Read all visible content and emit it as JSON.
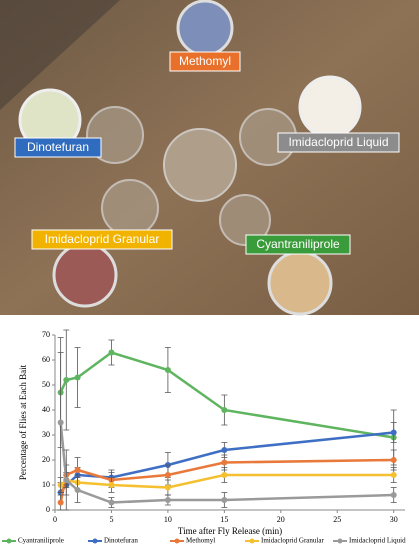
{
  "photo": {
    "labels": [
      {
        "text": "Methomyl",
        "color": "#e8702a"
      },
      {
        "text": "Dinotefuran",
        "color": "#2f6bbf"
      },
      {
        "text": "Imidacloprid Liquid",
        "color": "#8c8c8c"
      },
      {
        "text": "Imidacloprid Granular",
        "color": "#f2b300"
      },
      {
        "text": "Cyantraniliprole",
        "color": "#3a9b3a"
      }
    ]
  },
  "chart_data": {
    "type": "line",
    "x_label": "Time after Fly Release (min)",
    "y_label": "Percentage of Flies at Each Bait",
    "x": [
      0.5,
      1,
      2,
      5,
      10,
      15,
      30
    ],
    "xlim": [
      0,
      31
    ],
    "xticks": [
      0,
      5,
      10,
      15,
      20,
      25,
      30
    ],
    "ylim": [
      0,
      70
    ],
    "yticks": [
      0,
      10,
      20,
      30,
      40,
      50,
      60,
      70
    ],
    "series": [
      {
        "name": "Cyantraniliprole",
        "color": "#5fb55f",
        "values": [
          47,
          52,
          53,
          63,
          56,
          40,
          29
        ],
        "errors": [
          22,
          20,
          12,
          5,
          9,
          6,
          11
        ]
      },
      {
        "name": "Dinotefuran",
        "color": "#3f6fc4",
        "values": [
          7,
          10,
          14,
          13,
          18,
          24,
          31
        ],
        "errors": [
          4,
          4,
          3,
          3,
          5,
          3,
          4
        ]
      },
      {
        "name": "Methomyl",
        "color": "#e8793a",
        "values": [
          3,
          14,
          16,
          12,
          14,
          19,
          20
        ],
        "errors": [
          3,
          4,
          5,
          3,
          4,
          3,
          4
        ]
      },
      {
        "name": "Imidacloprid Granular",
        "color": "#f5c030",
        "values": [
          10,
          12,
          11,
          10,
          9,
          14,
          14
        ],
        "errors": [
          3,
          3,
          3,
          3,
          3,
          3,
          3
        ]
      },
      {
        "name": "Imidacloprid Liquid",
        "color": "#9a9a9a",
        "values": [
          35,
          12,
          8,
          3,
          4,
          4,
          6
        ],
        "errors": [
          28,
          12,
          5,
          2,
          2,
          3,
          3
        ]
      }
    ]
  }
}
